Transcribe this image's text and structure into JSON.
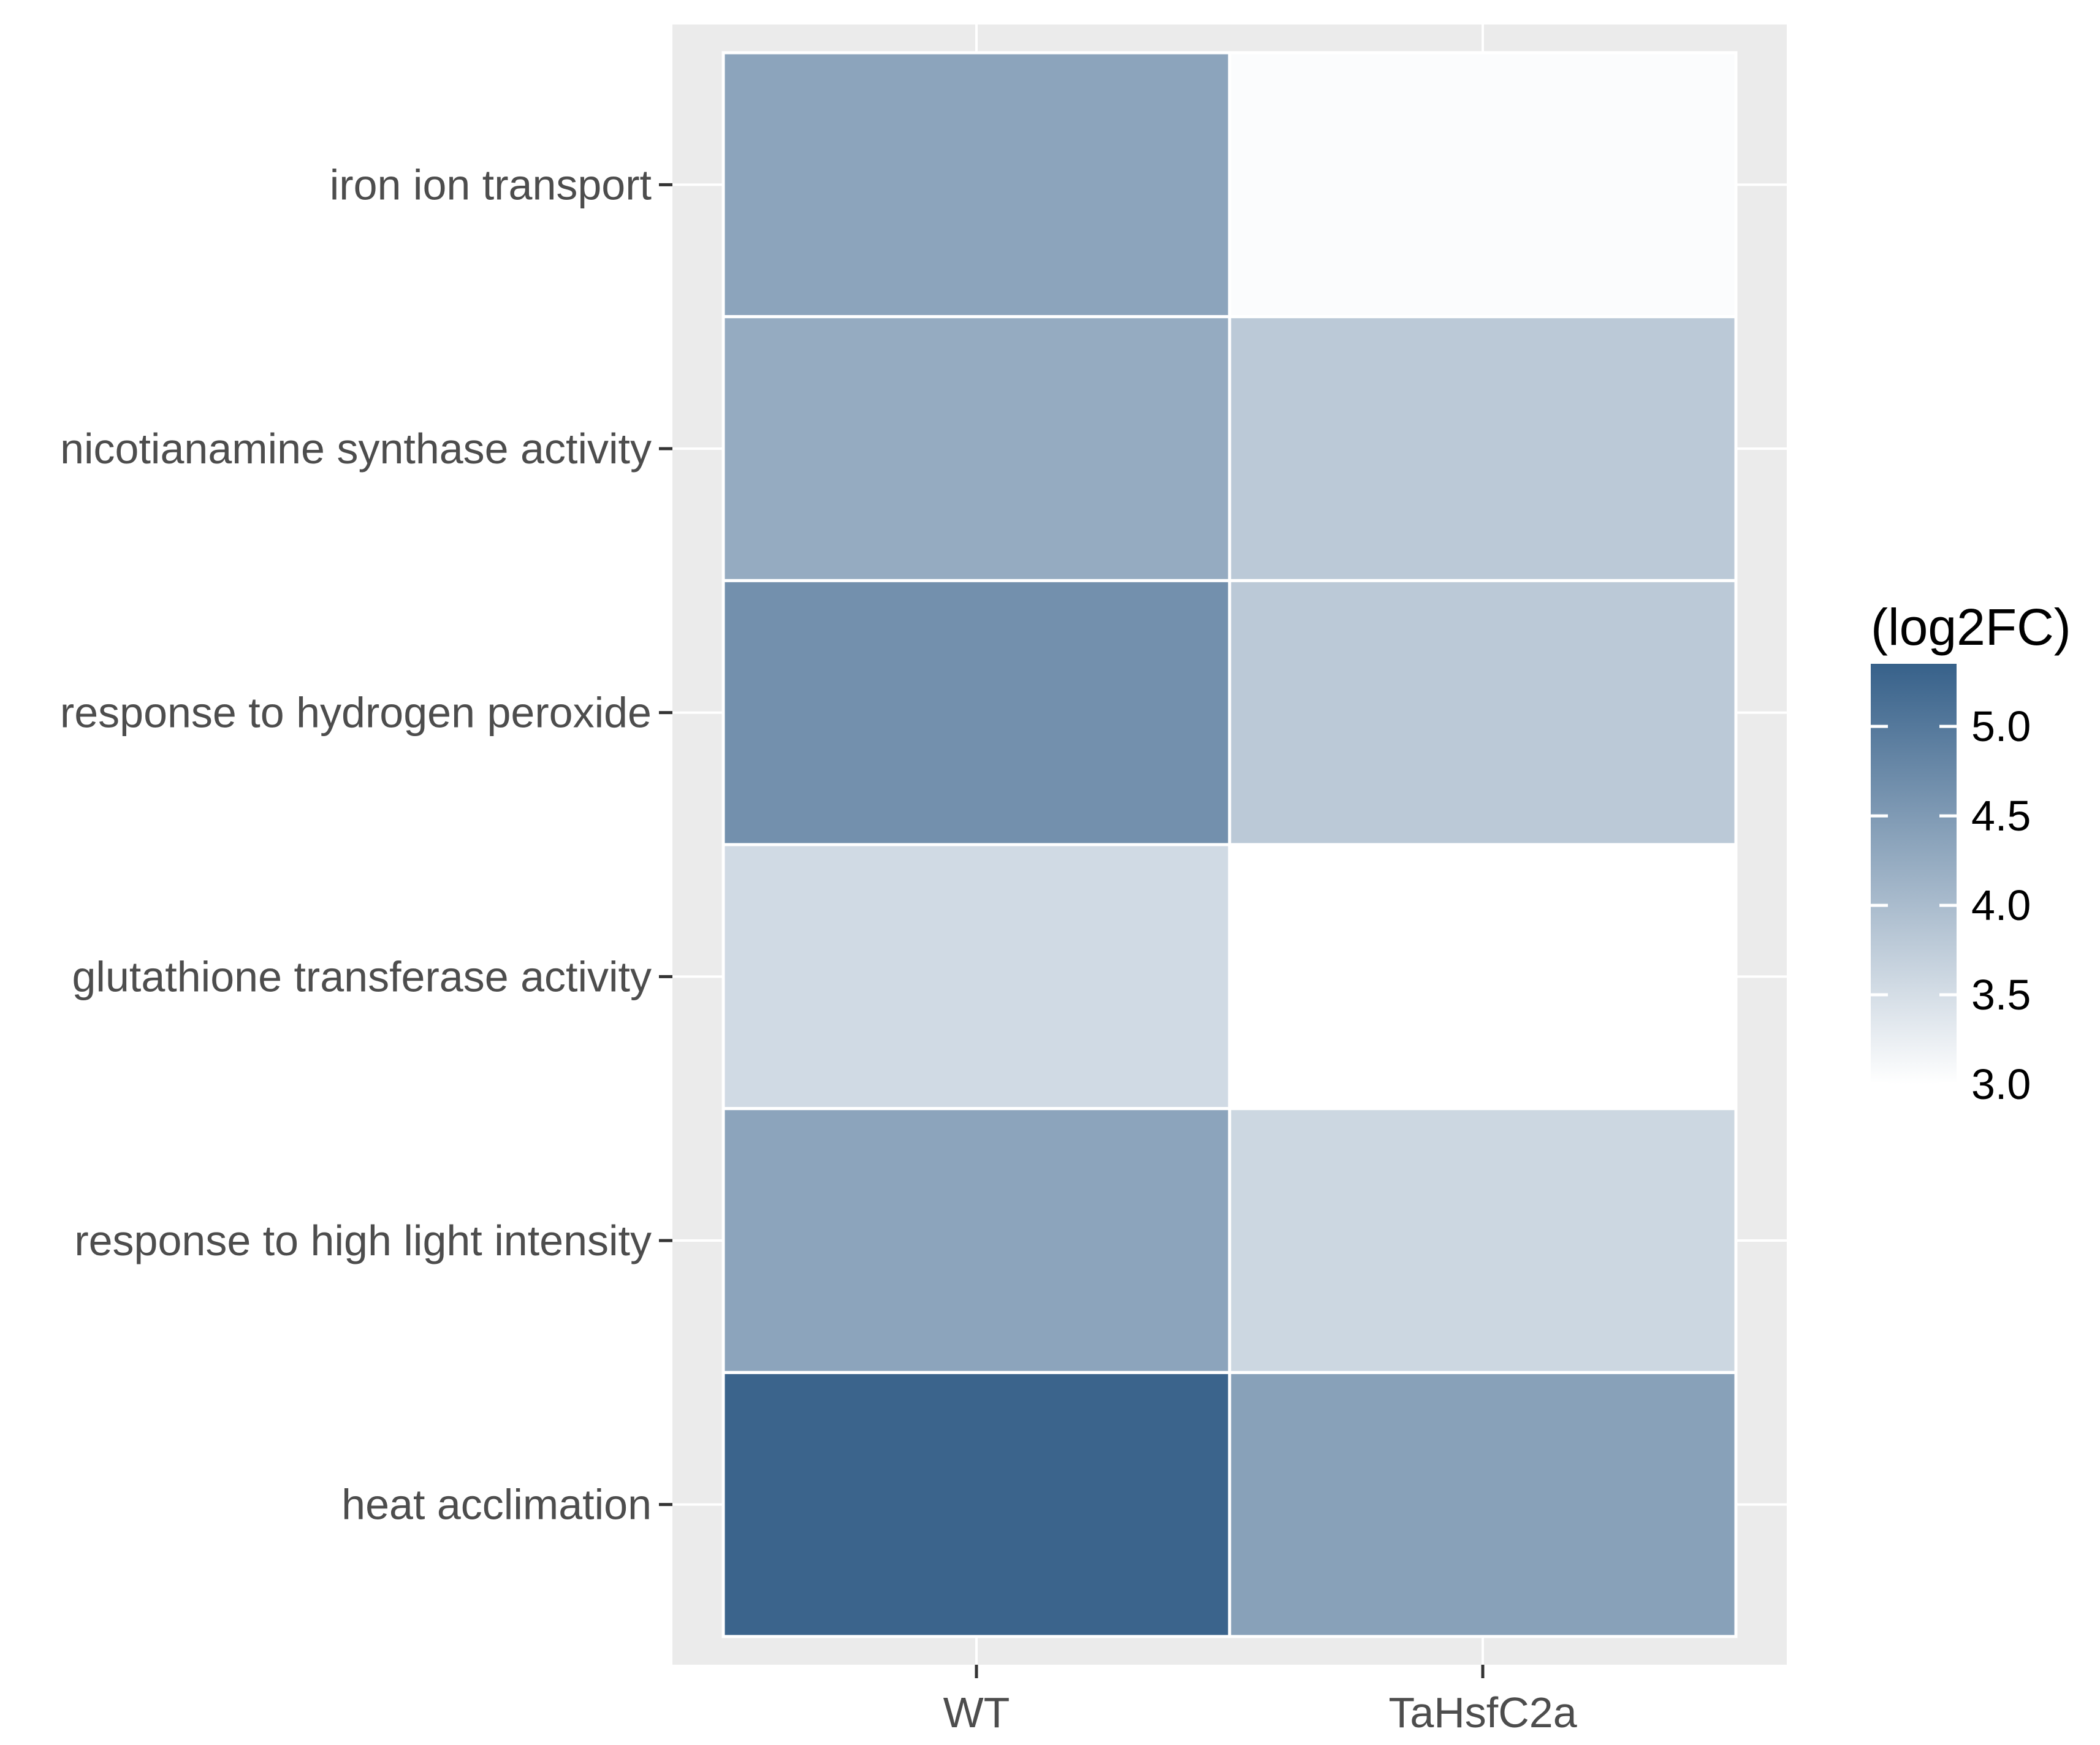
{
  "chart_data": {
    "type": "heatmap",
    "title": "",
    "xlabel": "",
    "ylabel": "",
    "x_categories": [
      "WT",
      "TaHsfC2a"
    ],
    "y_categories": [
      "iron ion transport",
      "nicotianamine synthase activity",
      "response to hydrogen peroxide",
      "glutathione transferase activity",
      "response to high light intensity",
      "heat acclimation"
    ],
    "values": [
      [
        4.35,
        3.05
      ],
      [
        4.25,
        3.8
      ],
      [
        4.65,
        3.8
      ],
      [
        3.55,
        3.0
      ],
      [
        4.35,
        3.6
      ],
      [
        5.3,
        4.4
      ]
    ],
    "legend": {
      "title": "(log2FC)",
      "range": [
        3.0,
        5.35
      ],
      "ticks": [
        5.0,
        4.5,
        4.0,
        3.5,
        3.0
      ],
      "tick_labels": [
        "5.0",
        "4.5",
        "4.0",
        "3.5",
        "3.0"
      ],
      "low_color": "#ffffff",
      "high_color": "#37618a",
      "position": "right"
    },
    "colors": {
      "panel_background": "#ebebeb",
      "gridline": "#ffffff",
      "tile_border": "#ffffff",
      "axis_text": "#4d4d4d",
      "tick": "#333333"
    }
  }
}
